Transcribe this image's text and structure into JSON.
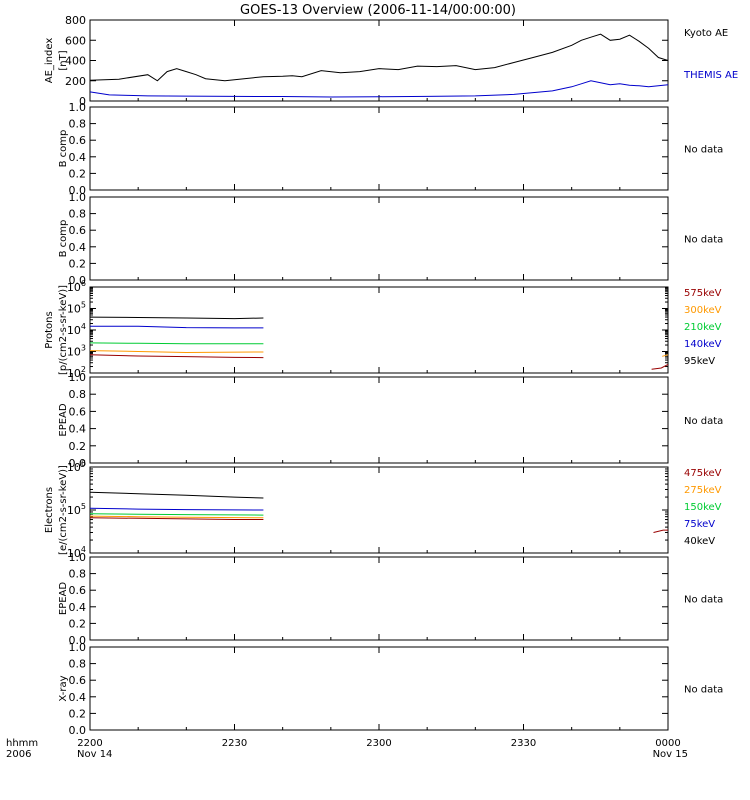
{
  "title": "GOES-13 Overview (2006-11-14/00:00:00)",
  "chart_data": [
    {
      "id": "ae",
      "type": "line",
      "ylabel": [
        "AE_index",
        "[nT]"
      ],
      "ylim": [
        0,
        800
      ],
      "yscale": "linear",
      "yticks": [
        0,
        200,
        400,
        600,
        800
      ],
      "legend": [
        {
          "text": "Kyoto AE",
          "color": "#000000"
        },
        {
          "text": "THEMIS AE",
          "color": "#0000cc"
        }
      ],
      "series": [
        {
          "name": "Kyoto AE",
          "color": "#000000",
          "x": [
            0,
            3,
            6,
            7,
            8,
            9,
            10,
            11,
            12,
            14,
            16,
            18,
            20,
            21,
            22,
            24,
            26,
            28,
            30,
            32,
            34,
            36,
            38,
            40,
            42,
            44,
            46,
            48,
            50,
            51,
            52,
            53,
            54,
            55,
            56,
            57,
            58,
            59,
            60
          ],
          "y": [
            205,
            215,
            260,
            200,
            290,
            320,
            290,
            260,
            220,
            200,
            220,
            240,
            245,
            250,
            240,
            300,
            280,
            290,
            320,
            310,
            345,
            340,
            350,
            310,
            330,
            380,
            430,
            480,
            550,
            600,
            630,
            660,
            600,
            610,
            650,
            590,
            520,
            430,
            400
          ]
        },
        {
          "name": "THEMIS AE",
          "color": "#0000cc",
          "x": [
            0,
            2,
            4,
            6,
            10,
            15,
            20,
            25,
            30,
            35,
            40,
            44,
            48,
            50,
            51,
            52,
            53,
            54,
            55,
            56,
            57,
            58,
            59,
            60
          ],
          "y": [
            90,
            60,
            55,
            50,
            48,
            45,
            44,
            40,
            42,
            45,
            50,
            65,
            100,
            140,
            170,
            200,
            180,
            160,
            170,
            155,
            150,
            140,
            150,
            160
          ]
        }
      ]
    },
    {
      "id": "bcomp1",
      "type": "line",
      "ylabel": [
        "B comp"
      ],
      "ylim": [
        0,
        1
      ],
      "yscale": "linear",
      "yticks": [
        0,
        0.2,
        0.4,
        0.6,
        0.8,
        1.0
      ],
      "no_data": "No data",
      "series": []
    },
    {
      "id": "bcomp2",
      "type": "line",
      "ylabel": [
        "B comp"
      ],
      "ylim": [
        0,
        1
      ],
      "yscale": "linear",
      "yticks": [
        0,
        0.2,
        0.4,
        0.6,
        0.8,
        1.0
      ],
      "no_data": "No data",
      "series": []
    },
    {
      "id": "protons",
      "type": "line",
      "ylabel": [
        "Protons",
        "[p/(cm2-s-sr-keV)]"
      ],
      "ylim": [
        100,
        1000000
      ],
      "yscale": "log",
      "yticks": [
        100,
        1000,
        10000,
        100000,
        1000000
      ],
      "legend": [
        {
          "text": "575keV",
          "color": "#990000"
        },
        {
          "text": "300keV",
          "color": "#ff9900"
        },
        {
          "text": "210keV",
          "color": "#00cc33"
        },
        {
          "text": "140keV",
          "color": "#0000cc"
        },
        {
          "text": "95keV",
          "color": "#000000"
        }
      ],
      "series": [
        {
          "name": "95keV",
          "color": "#000000",
          "x": [
            0,
            5,
            10,
            15,
            18
          ],
          "y": [
            40000,
            38000,
            36000,
            34000,
            36000
          ]
        },
        {
          "name": "140keV",
          "color": "#0000cc",
          "x": [
            0,
            5,
            10,
            15,
            18
          ],
          "y": [
            15000,
            15000,
            13000,
            12500,
            12500
          ]
        },
        {
          "name": "210keV",
          "color": "#00cc33",
          "x": [
            0,
            5,
            10,
            18
          ],
          "y": [
            2500,
            2400,
            2300,
            2300
          ]
        },
        {
          "name": "300keV",
          "color": "#ff9900",
          "x": [
            0,
            5,
            10,
            18
          ],
          "y": [
            1100,
            1000,
            900,
            950
          ]
        },
        {
          "name": "575keV",
          "color": "#990000",
          "x": [
            0,
            5,
            10,
            15,
            18
          ],
          "y": [
            700,
            620,
            580,
            530,
            520
          ]
        },
        {
          "name": "575keV",
          "color": "#990000",
          "x": [
            58.3,
            59.3,
            60
          ],
          "y": [
            150,
            170,
            250
          ]
        },
        {
          "name": "300keV",
          "color": "#ff9900",
          "x": [
            59.4,
            60
          ],
          "y": [
            600,
            700
          ]
        }
      ]
    },
    {
      "id": "epead1",
      "type": "line",
      "ylabel": [
        "EPEAD"
      ],
      "ylim": [
        0,
        1
      ],
      "yscale": "linear",
      "yticks": [
        0,
        0.2,
        0.4,
        0.6,
        0.8,
        1.0
      ],
      "no_data": "No data",
      "series": []
    },
    {
      "id": "electrons",
      "type": "line",
      "ylabel": [
        "Electrons",
        "[e/(cm2-s-sr-keV)]"
      ],
      "ylim": [
        10000,
        1000000
      ],
      "yscale": "log",
      "yticks": [
        10000,
        100000,
        1000000
      ],
      "legend": [
        {
          "text": "475keV",
          "color": "#990000"
        },
        {
          "text": "275keV",
          "color": "#ff9900"
        },
        {
          "text": "150keV",
          "color": "#00cc33"
        },
        {
          "text": "75keV",
          "color": "#0000cc"
        },
        {
          "text": "40keV",
          "color": "#000000"
        }
      ],
      "series": [
        {
          "name": "40keV",
          "color": "#000000",
          "x": [
            0,
            5,
            10,
            15,
            18
          ],
          "y": [
            260000,
            240000,
            220000,
            200000,
            190000
          ]
        },
        {
          "name": "75keV",
          "color": "#0000cc",
          "x": [
            0,
            5,
            10,
            18
          ],
          "y": [
            110000,
            105000,
            102000,
            100000
          ]
        },
        {
          "name": "150keV",
          "color": "#00cc33",
          "x": [
            0,
            5,
            10,
            18
          ],
          "y": [
            82000,
            80000,
            78000,
            76000
          ]
        },
        {
          "name": "275keV",
          "color": "#ff9900",
          "x": [
            0,
            5,
            10,
            18
          ],
          "y": [
            72000,
            70000,
            68000,
            66000
          ]
        },
        {
          "name": "475keV",
          "color": "#990000",
          "x": [
            0,
            5,
            10,
            15,
            18
          ],
          "y": [
            66000,
            64000,
            62000,
            60000,
            60000
          ]
        },
        {
          "name": "475keV",
          "color": "#990000",
          "x": [
            58.5,
            59.5,
            60
          ],
          "y": [
            30000,
            34000,
            34000
          ]
        }
      ]
    },
    {
      "id": "epead2",
      "type": "line",
      "ylabel": [
        "EPEAD"
      ],
      "ylim": [
        0,
        1
      ],
      "yscale": "linear",
      "yticks": [
        0,
        0.2,
        0.4,
        0.6,
        0.8,
        1.0
      ],
      "no_data": "No data",
      "series": []
    },
    {
      "id": "xray",
      "type": "line",
      "ylabel": [
        "X-ray"
      ],
      "ylim": [
        0,
        1
      ],
      "yscale": "linear",
      "yticks": [
        0,
        0.2,
        0.4,
        0.6,
        0.8,
        1.0
      ],
      "no_data": "No data",
      "series": []
    }
  ],
  "x_axis": {
    "xlim": [
      0,
      60
    ],
    "corner_label": [
      "hhmm",
      "2006"
    ],
    "ticks": [
      {
        "value": 0,
        "lines": [
          "2200",
          "Nov 14"
        ]
      },
      {
        "value": 15,
        "lines": [
          "2230"
        ]
      },
      {
        "value": 30,
        "lines": [
          "2300"
        ]
      },
      {
        "value": 45,
        "lines": [
          "2330"
        ]
      },
      {
        "value": 60,
        "lines": [
          "0000",
          "Nov 15"
        ]
      }
    ]
  }
}
